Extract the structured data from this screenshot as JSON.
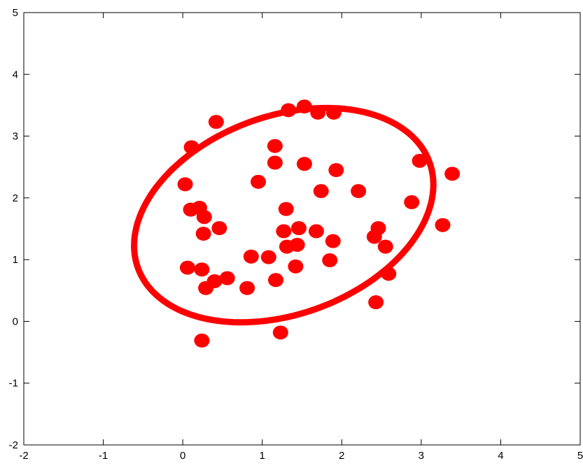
{
  "chart_data": {
    "type": "scatter",
    "title": "",
    "xlabel": "",
    "ylabel": "",
    "xlim": [
      -2,
      5
    ],
    "ylim": [
      -2,
      5
    ],
    "xticks": [
      -2,
      -1,
      0,
      1,
      2,
      3,
      4,
      5
    ],
    "yticks": [
      -2,
      -1,
      0,
      1,
      2,
      3,
      4,
      5
    ],
    "x_tick_labels": [
      "-2",
      "-1",
      "0",
      "1",
      "2",
      "3",
      "4",
      "5"
    ],
    "y_tick_labels": [
      "-2",
      "-1",
      "0",
      "1",
      "2",
      "3",
      "4",
      "5"
    ],
    "grid": false,
    "legend": "none",
    "colors": {
      "series": "#ff0000",
      "axes": "#000000",
      "background": "#ffffff"
    },
    "series": [
      {
        "type": "scatter",
        "points": [
          [
            0.42,
            3.23
          ],
          [
            0.11,
            2.82
          ],
          [
            1.33,
            3.42
          ],
          [
            1.53,
            3.48
          ],
          [
            1.7,
            3.38
          ],
          [
            1.9,
            3.38
          ],
          [
            1.16,
            2.84
          ],
          [
            1.16,
            2.57
          ],
          [
            1.53,
            2.55
          ],
          [
            1.93,
            2.45
          ],
          [
            0.95,
            2.26
          ],
          [
            0.03,
            2.22
          ],
          [
            1.74,
            2.11
          ],
          [
            2.21,
            2.11
          ],
          [
            2.98,
            2.6
          ],
          [
            3.39,
            2.39
          ],
          [
            2.88,
            1.93
          ],
          [
            1.3,
            1.82
          ],
          [
            0.1,
            1.81
          ],
          [
            0.21,
            1.84
          ],
          [
            0.27,
            1.69
          ],
          [
            0.46,
            1.51
          ],
          [
            0.26,
            1.42
          ],
          [
            1.27,
            1.46
          ],
          [
            1.46,
            1.51
          ],
          [
            1.68,
            1.46
          ],
          [
            1.89,
            1.3
          ],
          [
            2.46,
            1.51
          ],
          [
            2.41,
            1.37
          ],
          [
            3.27,
            1.56
          ],
          [
            2.55,
            1.21
          ],
          [
            1.31,
            1.21
          ],
          [
            1.44,
            1.24
          ],
          [
            0.86,
            1.05
          ],
          [
            1.08,
            1.04
          ],
          [
            1.85,
            0.99
          ],
          [
            0.06,
            0.87
          ],
          [
            0.24,
            0.84
          ],
          [
            1.42,
            0.89
          ],
          [
            2.59,
            0.77
          ],
          [
            0.4,
            0.65
          ],
          [
            0.56,
            0.7
          ],
          [
            0.29,
            0.54
          ],
          [
            0.81,
            0.54
          ],
          [
            1.17,
            0.67
          ],
          [
            2.43,
            0.31
          ],
          [
            1.23,
            -0.18
          ],
          [
            0.24,
            -0.31
          ]
        ]
      }
    ],
    "ellipse": {
      "center": [
        1.27,
        1.72
      ],
      "semi_axes": [
        2.06,
        1.52
      ],
      "angle_deg": 37
    }
  }
}
